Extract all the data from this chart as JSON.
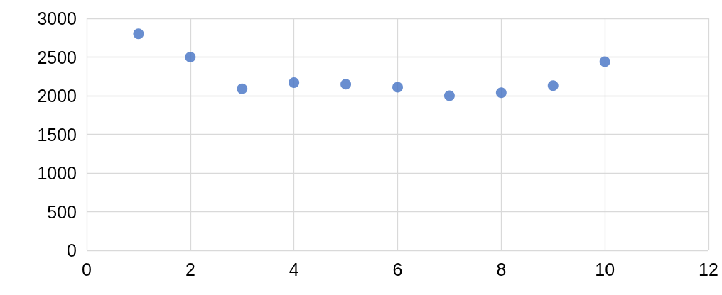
{
  "chart_data": {
    "type": "scatter",
    "x": [
      1,
      2,
      3,
      4,
      5,
      6,
      7,
      8,
      9,
      10
    ],
    "series": [
      {
        "color": "#4472c4",
        "values": [
          2800,
          2500,
          2090,
          2170,
          2150,
          2110,
          2000,
          2040,
          2130,
          2440
        ]
      }
    ],
    "xlim": [
      0,
      12
    ],
    "xticks": [
      0,
      2,
      4,
      6,
      8,
      10,
      12
    ],
    "ylim": [
      0,
      3000
    ],
    "yticks": [
      0,
      500,
      1000,
      1500,
      2000,
      2500,
      3000
    ],
    "grid": true,
    "marker": "circle"
  }
}
